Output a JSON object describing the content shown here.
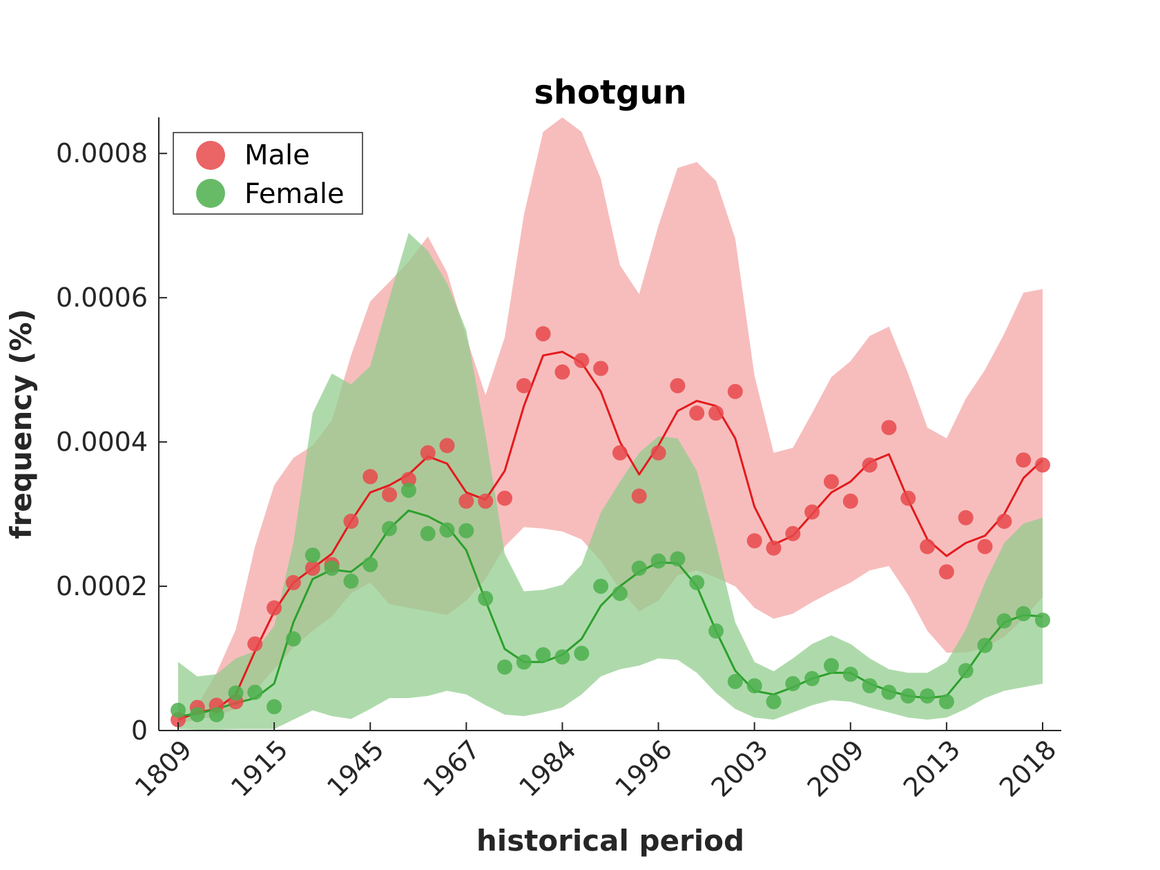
{
  "chart_data": {
    "type": "line",
    "title": "shotgun",
    "xlabel": "historical period",
    "ylabel": "frequency (%)",
    "x_tick_labels": [
      "1809",
      "1915",
      "1945",
      "1967",
      "1984",
      "1996",
      "2003",
      "2009",
      "2013",
      "2018"
    ],
    "x_tick_index": [
      0,
      5,
      10,
      15,
      20,
      25,
      30,
      35,
      40,
      45
    ],
    "ylim": [
      0,
      0.00085
    ],
    "y_ticks": [
      0,
      0.0002,
      0.0004,
      0.0006,
      0.0008
    ],
    "y_tick_labels": [
      "0",
      "0.0002",
      "0.0004",
      "0.0006",
      "0.0008"
    ],
    "legend": {
      "position": "top-left"
    },
    "grid": false,
    "series": [
      {
        "name": "Male",
        "color": "#e41a1c",
        "point_color": "#e8494b",
        "band_color": "#f4a3a4",
        "points": [
          1.5e-05,
          3.2e-05,
          3.5e-05,
          4e-05,
          0.00012,
          0.00017,
          0.000205,
          0.000225,
          0.00023,
          0.00029,
          0.000352,
          0.000327,
          0.000348,
          0.000385,
          0.000395,
          0.000318,
          0.000318,
          0.000322,
          0.000478,
          0.00055,
          0.000497,
          0.000513,
          0.000502,
          0.000385,
          0.000325,
          0.000385,
          0.000478,
          0.00044,
          0.00044,
          0.00047,
          0.000263,
          0.000253,
          0.000273,
          0.000303,
          0.000345,
          0.000318,
          0.000368,
          0.00042,
          0.000322,
          0.000255,
          0.00022,
          0.000295,
          0.000255,
          0.00029,
          0.000375,
          0.000368
        ],
        "smooth": [
          1.5e-05,
          2.5e-05,
          3e-05,
          5e-05,
          0.00011,
          0.000165,
          0.000205,
          0.000225,
          0.000245,
          0.00029,
          0.00033,
          0.00034,
          0.000355,
          0.00038,
          0.00037,
          0.00033,
          0.00032,
          0.00036,
          0.00045,
          0.00052,
          0.000525,
          0.00051,
          0.00047,
          0.0004,
          0.000355,
          0.000395,
          0.000443,
          0.000457,
          0.00045,
          0.000405,
          0.00031,
          0.000258,
          0.00027,
          0.0003,
          0.00033,
          0.000345,
          0.000372,
          0.000383,
          0.00032,
          0.000265,
          0.000242,
          0.00026,
          0.00027,
          0.0003,
          0.00035,
          0.000375
        ],
        "band_upper": [
          1e-05,
          3.5e-05,
          8e-05,
          0.00014,
          0.000255,
          0.00034,
          0.000378,
          0.000395,
          0.00043,
          0.00052,
          0.000595,
          0.000622,
          0.00065,
          0.000685,
          0.000635,
          0.000545,
          0.000465,
          0.000545,
          0.000715,
          0.00083,
          0.00085,
          0.00083,
          0.000765,
          0.000645,
          0.000605,
          0.0007,
          0.00078,
          0.000788,
          0.000762,
          0.000682,
          0.000492,
          0.000385,
          0.000392,
          0.00044,
          0.00049,
          0.000512,
          0.000547,
          0.00056,
          0.000495,
          0.00042,
          0.000405,
          0.00046,
          0.0005,
          0.00055,
          0.000607,
          0.000612
        ],
        "band_lower": [
          1e-05,
          1.5e-05,
          2e-05,
          3e-05,
          5.5e-05,
          8.5e-05,
          0.000115,
          0.000138,
          0.000158,
          0.00019,
          0.000205,
          0.000175,
          0.00017,
          0.000165,
          0.00016,
          0.00018,
          0.00021,
          0.000255,
          0.000282,
          0.00028,
          0.000276,
          0.000265,
          0.000235,
          0.000195,
          0.000165,
          0.00018,
          0.000215,
          0.000222,
          0.000212,
          0.0002,
          0.00017,
          0.000155,
          0.000162,
          0.000178,
          0.000192,
          0.000205,
          0.000222,
          0.000228,
          0.000188,
          0.000138,
          0.000108,
          0.000108,
          0.000115,
          0.00013,
          0.000155,
          0.000185
        ]
      },
      {
        "name": "Female",
        "color": "#2ca02c",
        "point_color": "#4caf4c",
        "band_color": "#8fcc8a",
        "points": [
          2.8e-05,
          2.2e-05,
          2.2e-05,
          5.2e-05,
          5.3e-05,
          3.3e-05,
          0.000127,
          0.000243,
          0.000225,
          0.000207,
          0.00023,
          0.00028,
          0.000333,
          0.000273,
          0.000278,
          0.000277,
          0.000183,
          8.8e-05,
          9.5e-05,
          0.000105,
          0.000102,
          0.000107,
          0.0002,
          0.00019,
          0.000225,
          0.000235,
          0.000238,
          0.000205,
          0.000138,
          6.8e-05,
          6.2e-05,
          4e-05,
          6.5e-05,
          7.2e-05,
          9e-05,
          7.8e-05,
          6.2e-05,
          5.3e-05,
          4.8e-05,
          4.8e-05,
          4e-05,
          8.3e-05,
          0.000118,
          0.000152,
          0.000162,
          0.000153
        ],
        "smooth": [
          2e-05,
          2.3e-05,
          3e-05,
          3.8e-05,
          4.5e-05,
          6.5e-05,
          0.00015,
          0.00021,
          0.000223,
          0.00022,
          0.00024,
          0.00028,
          0.000305,
          0.000297,
          0.000283,
          0.00025,
          0.00018,
          0.000113,
          9.5e-05,
          9.5e-05,
          0.000105,
          0.000127,
          0.000173,
          0.0002,
          0.00022,
          0.000233,
          0.000232,
          0.0002,
          0.000138,
          8.3e-05,
          5.5e-05,
          5e-05,
          6e-05,
          7.2e-05,
          8e-05,
          8e-05,
          6.5e-05,
          5.5e-05,
          4.8e-05,
          4.5e-05,
          4.8e-05,
          8e-05,
          0.000118,
          0.00015,
          0.00016,
          0.000158
        ],
        "band_upper": [
          9.5e-05,
          7.5e-05,
          7.8e-05,
          0.0001,
          0.00011,
          0.000145,
          0.00026,
          0.00044,
          0.000495,
          0.00048,
          0.000505,
          0.0006,
          0.00069,
          0.000665,
          0.00062,
          0.000555,
          0.00041,
          0.000245,
          0.000193,
          0.000195,
          0.000202,
          0.00023,
          0.000302,
          0.000345,
          0.000385,
          0.000408,
          0.000405,
          0.00036,
          0.00026,
          0.00015,
          9.5e-05,
          8.2e-05,
          0.0001,
          0.00012,
          0.000132,
          0.00012,
          0.0001,
          8.5e-05,
          8e-05,
          8e-05,
          9.5e-05,
          0.00014,
          0.000205,
          0.00026,
          0.000287,
          0.000295
        ],
        "band_lower": [
          2e-06,
          1e-06,
          1e-06,
          2e-06,
          2e-06,
          2e-06,
          1.5e-05,
          2.8e-05,
          2e-05,
          1.6e-05,
          3e-05,
          4.5e-05,
          4.5e-05,
          4.8e-05,
          5.5e-05,
          5e-05,
          3.5e-05,
          2.2e-05,
          2e-05,
          2.5e-05,
          3.2e-05,
          5e-05,
          7.5e-05,
          8.5e-05,
          9e-05,
          0.0001,
          9.8e-05,
          8e-05,
          5.2e-05,
          3e-05,
          1.8e-05,
          1.5e-05,
          2.5e-05,
          3.5e-05,
          4.2e-05,
          4e-05,
          3.2e-05,
          2.5e-05,
          1.8e-05,
          1.5e-05,
          1.8e-05,
          3e-05,
          4.5e-05,
          5.5e-05,
          6e-05,
          6.5e-05
        ]
      }
    ]
  }
}
